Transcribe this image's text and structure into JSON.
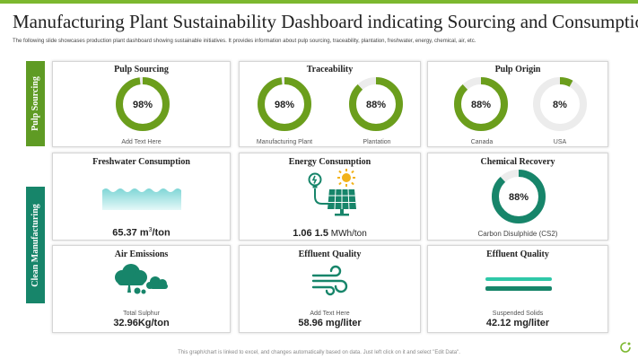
{
  "header": {
    "title": "Manufacturing Plant Sustainability Dashboard indicating Sourcing and Consumption",
    "subtitle": "The following slide showcases production plant dashboard showing sustainable initiatives. It provides information about pulp sourcing, traceability, plantation, freshwater, energy, chemical, air, etc."
  },
  "side_labels": {
    "pulp": "Pulp Sourcing",
    "clean": "Clean Manufacturing"
  },
  "colors": {
    "green": "#6b9e1c",
    "teal": "#17856a",
    "track": "#ececec",
    "accent": "#7cb82f"
  },
  "pulp_sourcing": {
    "title": "Pulp Sourcing",
    "value_label": "98%",
    "value": 98,
    "caption": "Add Text Here"
  },
  "traceability": {
    "title": "Traceability",
    "items": [
      {
        "value_label": "98%",
        "value": 98,
        "caption": "Manufacturing Plant"
      },
      {
        "value_label": "88%",
        "value": 88,
        "caption": "Plantation"
      }
    ]
  },
  "pulp_origin": {
    "title": "Pulp Origin",
    "items": [
      {
        "value_label": "88%",
        "value": 88,
        "caption": "Canada"
      },
      {
        "value_label": "8%",
        "value": 8,
        "caption": "USA"
      }
    ]
  },
  "freshwater": {
    "title": "Freshwater Consumption",
    "value_main": "65.37 m",
    "value_sup": "3",
    "value_unit": "/ton"
  },
  "energy": {
    "title": "Energy Consumption",
    "value_main": "1.06 1.5",
    "value_unit": " MWh/ton"
  },
  "chemical": {
    "title": "Chemical Recovery",
    "value_label": "88%",
    "value": 88,
    "caption": "Carbon Disulphide (CS2)"
  },
  "air": {
    "title": "Air Emissions",
    "caption": "Total Sulphur",
    "value": "32.96Kg/ton"
  },
  "effluent_1": {
    "title": "Effluent Quality",
    "caption": "Add Text Here",
    "value": "58.96 mg/liter"
  },
  "effluent_2": {
    "title": "Effluent Quality",
    "caption": "Suspended Solids",
    "value": "42.12 mg/liter"
  },
  "footer": "This graph/chart is linked to excel, and changes automatically based on data. Just left click on it and select \"Edit Data\"."
}
